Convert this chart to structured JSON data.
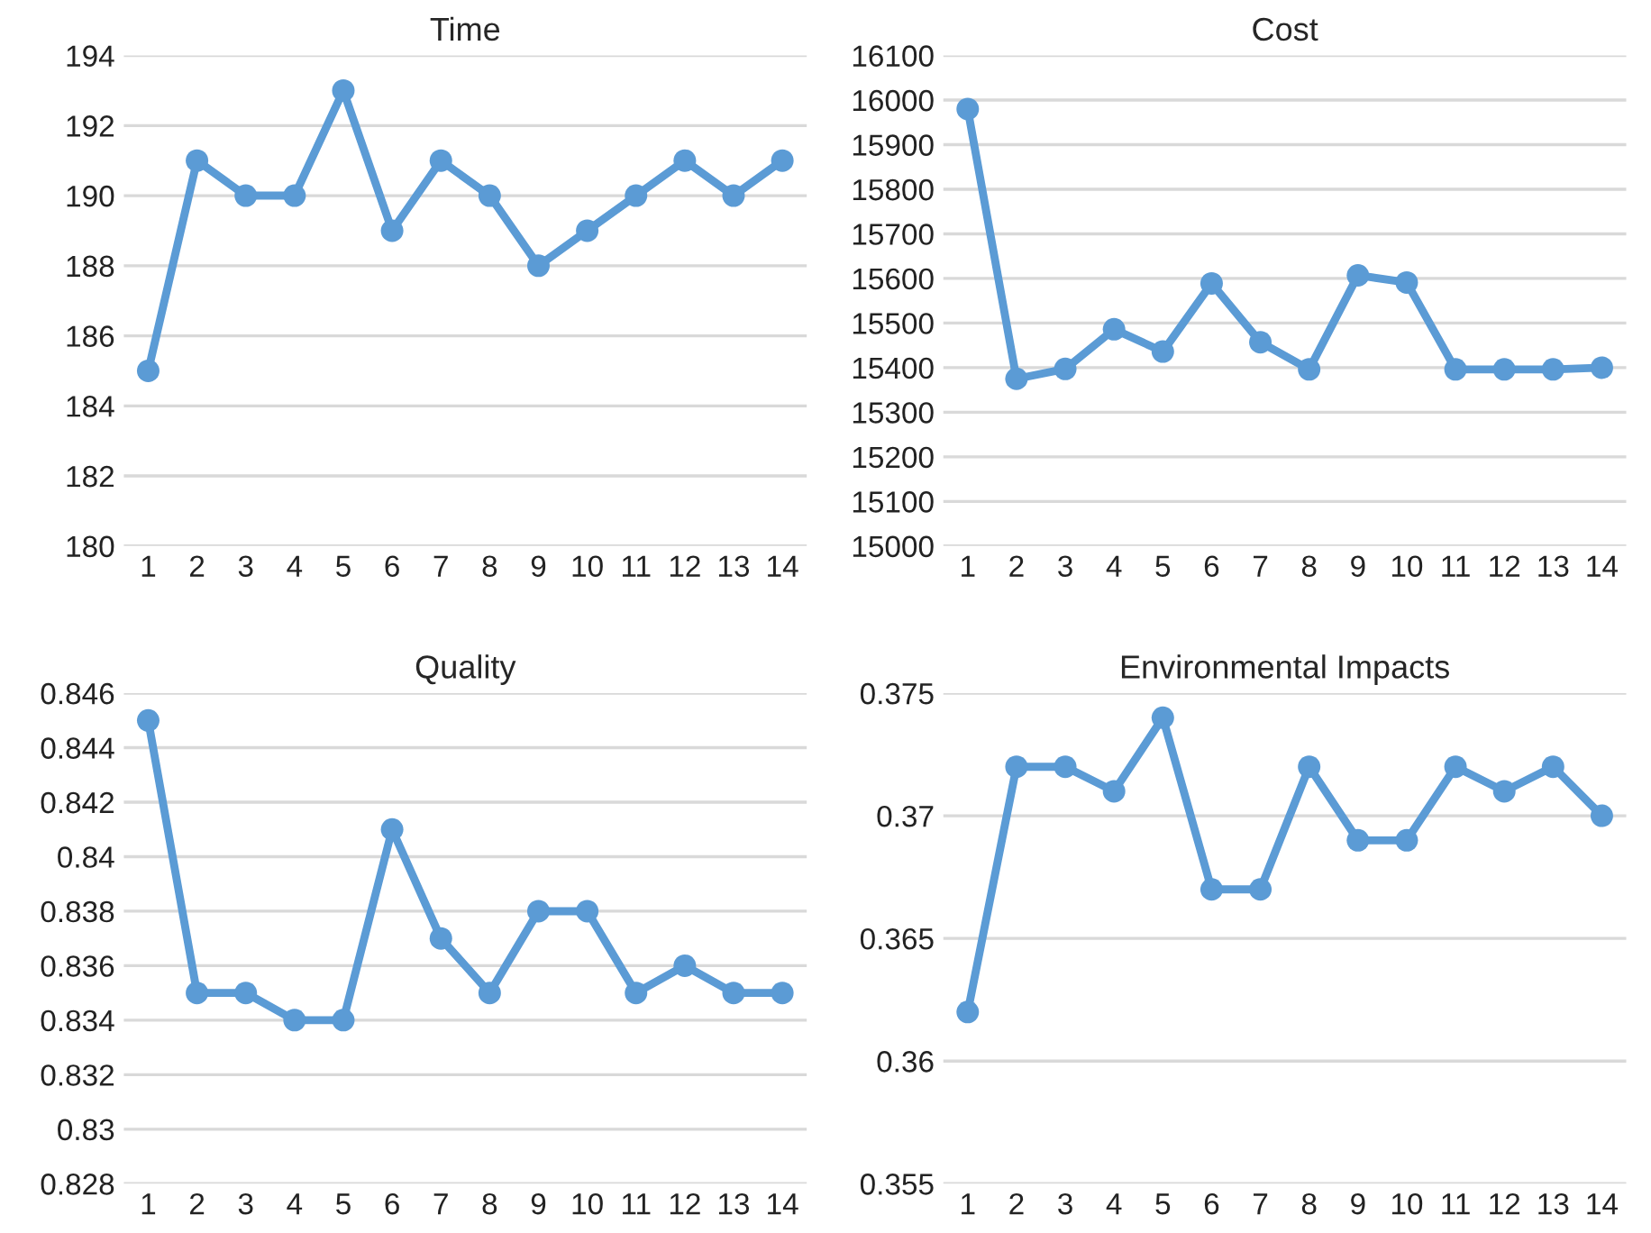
{
  "chart_data": [
    {
      "type": "line",
      "title": "Time",
      "categories": [
        "1",
        "2",
        "3",
        "4",
        "5",
        "6",
        "7",
        "8",
        "9",
        "10",
        "11",
        "12",
        "13",
        "14"
      ],
      "series": [
        {
          "color": "#5b9bd5",
          "values": [
            185,
            191,
            190,
            190,
            193,
            189,
            191,
            190,
            188,
            189,
            190,
            191,
            190,
            191
          ]
        }
      ],
      "ylim": [
        180,
        194
      ],
      "yticks": [
        180,
        182,
        184,
        186,
        188,
        190,
        192,
        194
      ],
      "grid": "y",
      "legend": false,
      "marker": "circle",
      "line_style": "solid"
    },
    {
      "type": "line",
      "title": "Cost",
      "categories": [
        "1",
        "2",
        "3",
        "4",
        "5",
        "6",
        "7",
        "8",
        "9",
        "10",
        "11",
        "12",
        "13",
        "14"
      ],
      "series": [
        {
          "color": "#5b9bd5",
          "values": [
            15980,
            15375,
            15397,
            15486,
            15436,
            15589,
            15457,
            15396,
            15607,
            15591,
            15396,
            15396,
            15396,
            15400
          ]
        }
      ],
      "ylim": [
        15000,
        16100
      ],
      "yticks": [
        15000,
        15100,
        15200,
        15300,
        15400,
        15500,
        15600,
        15700,
        15800,
        15900,
        16000,
        16100
      ],
      "grid": "y",
      "legend": false,
      "marker": "circle",
      "line_style": "solid"
    },
    {
      "type": "line",
      "title": "Quality",
      "categories": [
        "1",
        "2",
        "3",
        "4",
        "5",
        "6",
        "7",
        "8",
        "9",
        "10",
        "11",
        "12",
        "13",
        "14"
      ],
      "series": [
        {
          "color": "#5b9bd5",
          "values": [
            0.845,
            0.835,
            0.835,
            0.834,
            0.834,
            0.841,
            0.837,
            0.835,
            0.838,
            0.838,
            0.835,
            0.836,
            0.835,
            0.835
          ]
        }
      ],
      "ylim": [
        0.828,
        0.846
      ],
      "yticks": [
        0.828,
        0.83,
        0.832,
        0.834,
        0.836,
        0.838,
        0.84,
        0.842,
        0.844,
        0.846
      ],
      "grid": "y",
      "legend": false,
      "marker": "circle",
      "line_style": "solid"
    },
    {
      "type": "line",
      "title": "Environmental Impacts",
      "categories": [
        "1",
        "2",
        "3",
        "4",
        "5",
        "6",
        "7",
        "8",
        "9",
        "10",
        "11",
        "12",
        "13",
        "14"
      ],
      "series": [
        {
          "color": "#5b9bd5",
          "values": [
            0.362,
            0.372,
            0.372,
            0.371,
            0.374,
            0.367,
            0.367,
            0.372,
            0.369,
            0.369,
            0.372,
            0.371,
            0.372,
            0.37
          ]
        }
      ],
      "ylim": [
        0.355,
        0.375
      ],
      "yticks": [
        0.355,
        0.36,
        0.365,
        0.37,
        0.375
      ],
      "grid": "y",
      "legend": false,
      "marker": "circle",
      "line_style": "solid"
    }
  ]
}
